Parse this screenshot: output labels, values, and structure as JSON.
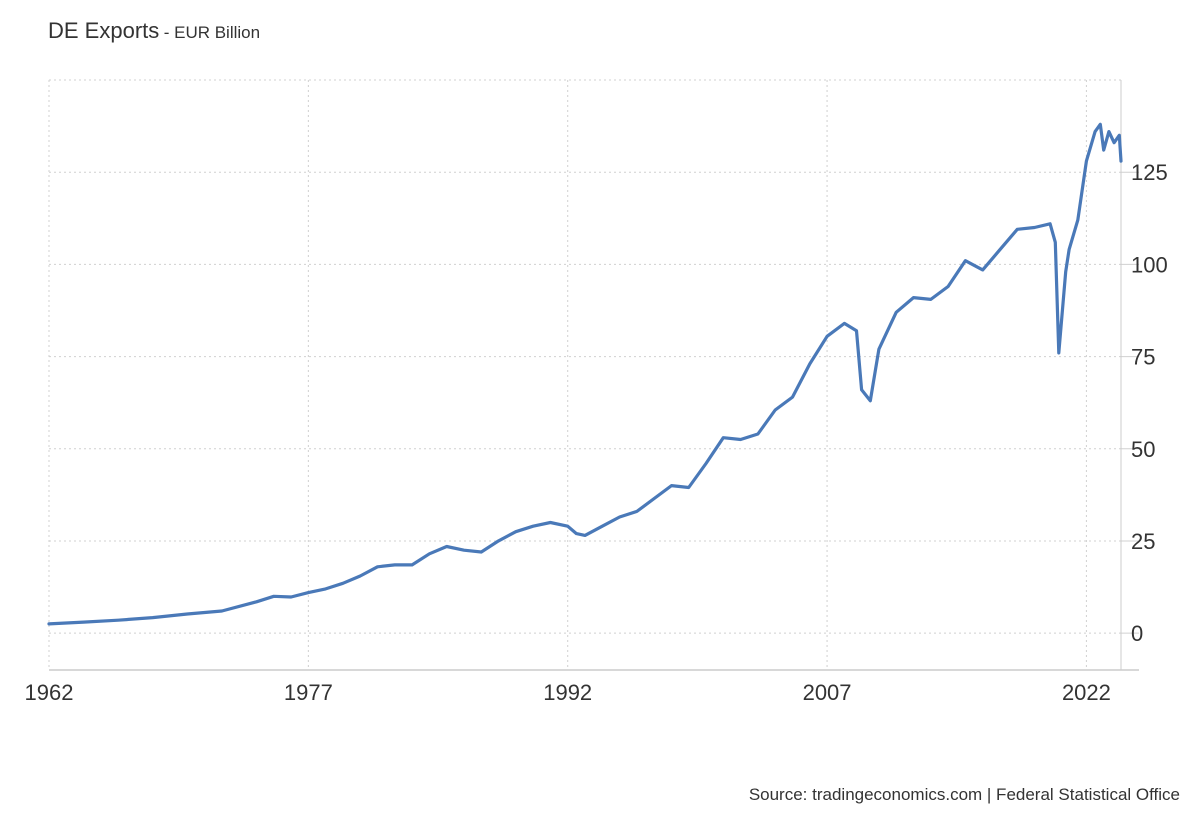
{
  "header": {
    "title": "DE Exports",
    "subtitle": "- EUR Billion"
  },
  "footer": {
    "source": "Source: tradingeconomics.com | Federal Statistical Office"
  },
  "colors": {
    "line": "#4a79b8",
    "grid": "#d0d0d0",
    "axis": "#cccccc",
    "text": "#333333"
  },
  "chart_data": {
    "type": "line",
    "title": "DE Exports",
    "subtitle": "- EUR Billion",
    "xlabel": "",
    "ylabel": "",
    "xlim": [
      1962,
      2024
    ],
    "ylim": [
      -10,
      150
    ],
    "x_ticks": [
      1962,
      1977,
      1992,
      2007,
      2022
    ],
    "x_tick_labels": [
      "1962",
      "1977",
      "1992",
      "2007",
      "2022"
    ],
    "y_ticks": [
      0,
      25,
      50,
      75,
      100,
      125
    ],
    "y_tick_labels": [
      "0",
      "25",
      "50",
      "75",
      "100",
      "125"
    ],
    "y_axis_side": "right",
    "grid": true,
    "legend": "none",
    "series": [
      {
        "x": [
          1962,
          1964,
          1966,
          1968,
          1970,
          1972,
          1974,
          1975,
          1976,
          1977,
          1978,
          1979,
          1980,
          1981,
          1982,
          1983,
          1984,
          1985,
          1986,
          1987,
          1988,
          1989,
          1990,
          1991,
          1992,
          1992.5,
          1993,
          1994,
          1995,
          1996,
          1997,
          1998,
          1999,
          2000,
          2001,
          2002,
          2003,
          2004,
          2005,
          2006,
          2007,
          2008,
          2008.7,
          2009,
          2009.5,
          2010,
          2011,
          2012,
          2013,
          2014,
          2015,
          2016,
          2017,
          2018,
          2019,
          2019.9,
          2020.2,
          2020.4,
          2020.8,
          2021,
          2021.5,
          2022,
          2022.5,
          2022.8,
          2023,
          2023.3,
          2023.6,
          2023.9,
          2024
        ],
        "values": [
          2.5,
          3,
          3.5,
          4.2,
          5.2,
          6,
          8.5,
          10,
          9.8,
          11,
          12,
          13.5,
          15.5,
          18,
          18.5,
          18.5,
          21.5,
          23.5,
          22.5,
          22,
          25,
          27.5,
          29,
          30,
          29,
          27,
          26.5,
          29,
          31.5,
          33,
          36.5,
          40,
          39.5,
          46,
          53,
          52.5,
          54,
          60.5,
          64,
          73,
          80.5,
          84,
          82,
          66,
          63,
          77,
          87,
          91,
          90.5,
          94,
          101,
          98.5,
          104,
          109.5,
          110,
          111,
          106,
          76,
          98,
          104,
          112,
          128,
          136,
          138,
          131,
          136,
          133,
          135,
          128
        ]
      }
    ]
  }
}
